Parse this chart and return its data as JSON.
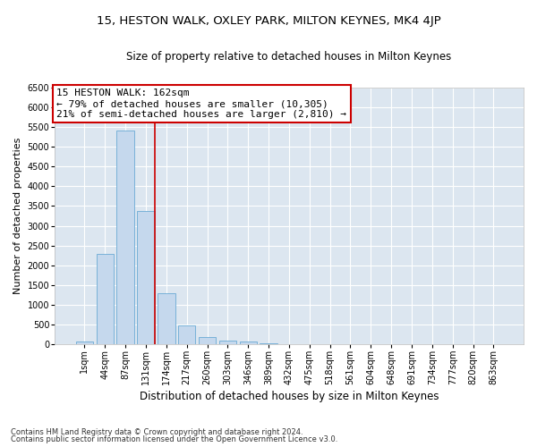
{
  "title1": "15, HESTON WALK, OXLEY PARK, MILTON KEYNES, MK4 4JP",
  "title2": "Size of property relative to detached houses in Milton Keynes",
  "xlabel": "Distribution of detached houses by size in Milton Keynes",
  "ylabel": "Number of detached properties",
  "footnote1": "Contains HM Land Registry data © Crown copyright and database right 2024.",
  "footnote2": "Contains public sector information licensed under the Open Government Licence v3.0.",
  "bin_labels": [
    "1sqm",
    "44sqm",
    "87sqm",
    "131sqm",
    "174sqm",
    "217sqm",
    "260sqm",
    "303sqm",
    "346sqm",
    "389sqm",
    "432sqm",
    "475sqm",
    "518sqm",
    "561sqm",
    "604sqm",
    "648sqm",
    "691sqm",
    "734sqm",
    "777sqm",
    "820sqm",
    "863sqm"
  ],
  "bar_values": [
    60,
    2280,
    5420,
    3380,
    1290,
    470,
    170,
    100,
    60,
    30,
    10,
    5,
    0,
    0,
    0,
    0,
    0,
    0,
    0,
    0,
    0
  ],
  "bar_color": "#c5d8ed",
  "bar_edge_color": "#6aaad4",
  "vline_color": "#cc0000",
  "vline_x": 3.45,
  "annotation_line1": "15 HESTON WALK: 162sqm",
  "annotation_line2": "← 79% of detached houses are smaller (10,305)",
  "annotation_line3": "21% of semi-detached houses are larger (2,810) →",
  "annotation_box_edge_color": "#cc0000",
  "ylim_max": 6500,
  "yticks": [
    0,
    500,
    1000,
    1500,
    2000,
    2500,
    3000,
    3500,
    4000,
    4500,
    5000,
    5500,
    6000,
    6500
  ],
  "background_color": "#dce6f0",
  "grid_color": "#ffffff",
  "title1_fontsize": 9.5,
  "title2_fontsize": 8.5,
  "xlabel_fontsize": 8.5,
  "ylabel_fontsize": 8,
  "tick_fontsize": 7,
  "annotation_fontsize": 8,
  "footnote_fontsize": 6
}
